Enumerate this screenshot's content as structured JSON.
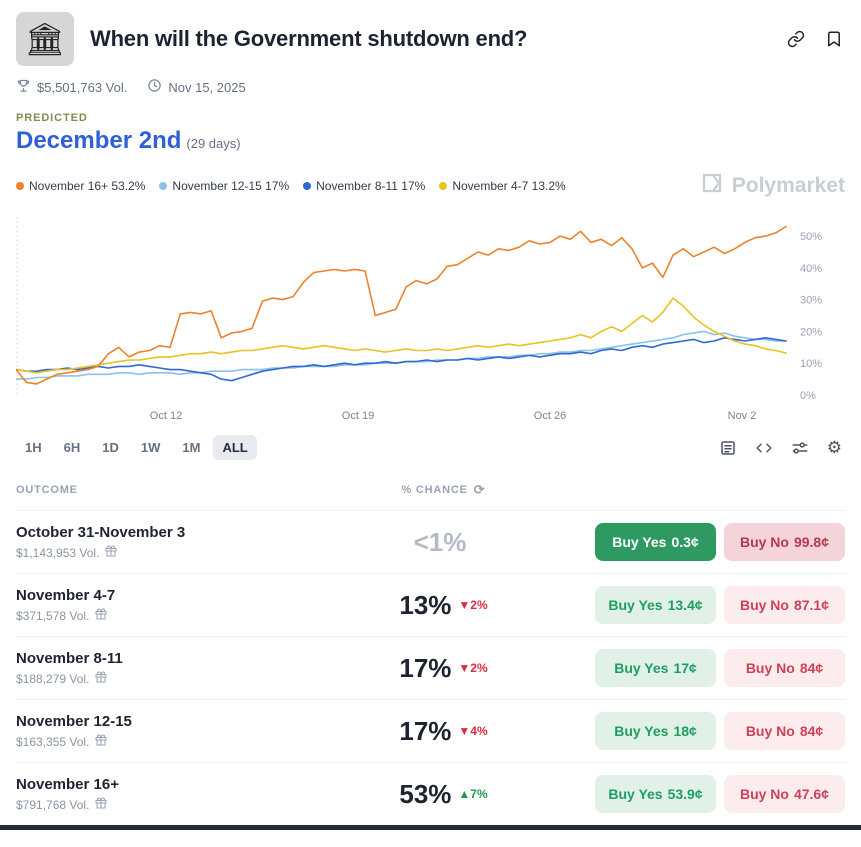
{
  "header": {
    "icon_glyph": "🏛",
    "title": "When will the Government shutdown end?"
  },
  "stats": {
    "volume": "$5,501,763 Vol.",
    "date": "Nov 15, 2025"
  },
  "predicted": {
    "label": "PREDICTED",
    "value": "December 2nd",
    "suffix": "(29 days)"
  },
  "legend": [
    {
      "label": "November 16+ 53.2%",
      "color": "#ed822e"
    },
    {
      "label": "November 12-15 17%",
      "color": "#8cc1ea"
    },
    {
      "label": "November 8-11 17%",
      "color": "#2f6ad1"
    },
    {
      "label": "November 4-7 13.2%",
      "color": "#e9c223"
    }
  ],
  "watermark": "Polymarket",
  "chart_data": {
    "type": "line",
    "ylim": [
      0,
      56
    ],
    "y_ticks": [
      0,
      10,
      20,
      30,
      40,
      50
    ],
    "x_ticks": [
      {
        "pos": 0.195,
        "label": "Oct 12"
      },
      {
        "pos": 0.444,
        "label": "Oct 19"
      },
      {
        "pos": 0.693,
        "label": "Oct 26"
      },
      {
        "pos": 0.943,
        "label": "Nov 2"
      }
    ],
    "series": [
      {
        "name": "November 12-15",
        "color": "#8cc1ea",
        "values": [
          5,
          5,
          5.5,
          5.5,
          6,
          6,
          6,
          6.5,
          6.5,
          6.5,
          7,
          7,
          6.5,
          7,
          7,
          7,
          6.5,
          7,
          7,
          7.5,
          7.5,
          7.5,
          8,
          8,
          8,
          8.5,
          8.5,
          8.5,
          9,
          9,
          9,
          9,
          9.5,
          9.5,
          9.5,
          10,
          10,
          10,
          10.5,
          10.5,
          10.5,
          11,
          11,
          11,
          11.5,
          11.5,
          12,
          12,
          12,
          12.5,
          12.5,
          13,
          13,
          13.5,
          13.5,
          14,
          14,
          14.5,
          15,
          15.5,
          16,
          16.5,
          17,
          17.5,
          18,
          19,
          19.5,
          20,
          19,
          19.5,
          18.5,
          18,
          17.5,
          17.5,
          17,
          17
        ]
      },
      {
        "name": "November 8-11",
        "color": "#2f6ad1",
        "values": [
          8,
          7.5,
          7.5,
          8,
          8,
          8.5,
          8,
          8.5,
          9,
          8.5,
          9,
          9,
          9.5,
          9,
          8.5,
          8,
          8,
          7.5,
          7,
          6.5,
          5,
          4.5,
          5.5,
          6.5,
          7.5,
          8,
          8.5,
          9,
          9,
          9.5,
          9,
          9.5,
          10,
          9.5,
          10,
          10,
          10.5,
          10,
          10.5,
          10.5,
          11,
          10.5,
          11,
          11,
          11.5,
          11,
          11.5,
          12,
          11.5,
          12,
          12.5,
          12,
          12.5,
          13,
          13,
          13.5,
          13,
          14,
          14.5,
          14,
          15,
          15.5,
          15,
          16,
          16.5,
          17,
          17.5,
          16.5,
          17,
          18,
          17.5,
          17,
          17.5,
          18,
          17.5,
          17
        ]
      },
      {
        "name": "November 4-7",
        "color": "#e9c223",
        "values": [
          8,
          7.5,
          7,
          7.5,
          8,
          8,
          8.5,
          9,
          9.5,
          10,
          10.5,
          11,
          11,
          11.5,
          12,
          12,
          12.5,
          13,
          13,
          13.5,
          13,
          13.5,
          14,
          14,
          14.5,
          15,
          15.5,
          15,
          14.5,
          15,
          15.5,
          15,
          14.5,
          14,
          14.5,
          14,
          13.5,
          14,
          14.5,
          14,
          14,
          14.5,
          14,
          14.5,
          15,
          15.5,
          15,
          15.5,
          16,
          15.5,
          16,
          16.5,
          17,
          17.5,
          18,
          19,
          18,
          20,
          21.5,
          20,
          22.5,
          25,
          23,
          26,
          30.5,
          28,
          24.5,
          22,
          20,
          18.5,
          17,
          16,
          15.5,
          14.5,
          14,
          13.2
        ]
      },
      {
        "name": "November 16+",
        "color": "#ed822e",
        "values": [
          8,
          4,
          3.5,
          5,
          6.5,
          7,
          7.5,
          8,
          9,
          13,
          15,
          12,
          13.5,
          14,
          15.5,
          15,
          25.5,
          26,
          25.5,
          26.5,
          18,
          19.5,
          20,
          21,
          29.5,
          30.5,
          30,
          31,
          35.5,
          38.5,
          39,
          39.5,
          39,
          39.5,
          39,
          25,
          26,
          27,
          34,
          36,
          35,
          36.5,
          40.5,
          41,
          43,
          45,
          44,
          46,
          45.5,
          46.5,
          48.5,
          47.5,
          48,
          50,
          49,
          51.5,
          48,
          49,
          47,
          49.5,
          46,
          40,
          41.5,
          37,
          44,
          46,
          43.5,
          45,
          46.5,
          44.5,
          46,
          48,
          49.5,
          50,
          51,
          53
        ]
      }
    ]
  },
  "toolbar": {
    "ranges": [
      "1H",
      "6H",
      "1D",
      "1W",
      "1M",
      "ALL"
    ],
    "active_range": "ALL",
    "gear_icon": "⚙"
  },
  "table": {
    "outcome_header": "OUTCOME",
    "chance_header": "% CHANCE",
    "refresh_icon": "⟳",
    "buy_yes_label": "Buy Yes",
    "buy_no_label": "Buy No"
  },
  "outcomes": [
    {
      "title": "October 31-November 3",
      "volume": "$1,143,953 Vol.",
      "chance": "<1%",
      "chance_class": "muted",
      "change": "",
      "change_class": "",
      "yes_price": "0.3¢",
      "no_price": "99.8¢",
      "yes_class": "solid",
      "no_class": "strong"
    },
    {
      "title": "November 4-7",
      "volume": "$371,578 Vol.",
      "chance": "13%",
      "chance_class": "",
      "change": "▼2%",
      "change_class": "down",
      "yes_price": "13.4¢",
      "no_price": "87.1¢",
      "yes_class": "",
      "no_class": ""
    },
    {
      "title": "November 8-11",
      "volume": "$188,279 Vol.",
      "chance": "17%",
      "chance_class": "",
      "change": "▼2%",
      "change_class": "down",
      "yes_price": "17¢",
      "no_price": "84¢",
      "yes_class": "",
      "no_class": ""
    },
    {
      "title": "November 12-15",
      "volume": "$163,355 Vol.",
      "chance": "17%",
      "chance_class": "",
      "change": "▼4%",
      "change_class": "down",
      "yes_price": "18¢",
      "no_price": "84¢",
      "yes_class": "",
      "no_class": ""
    },
    {
      "title": "November 16+",
      "volume": "$791,768 Vol.",
      "chance": "53%",
      "chance_class": "",
      "change": "▲7%",
      "change_class": "up",
      "yes_price": "53.9¢",
      "no_price": "47.6¢",
      "yes_class": "",
      "no_class": ""
    }
  ]
}
